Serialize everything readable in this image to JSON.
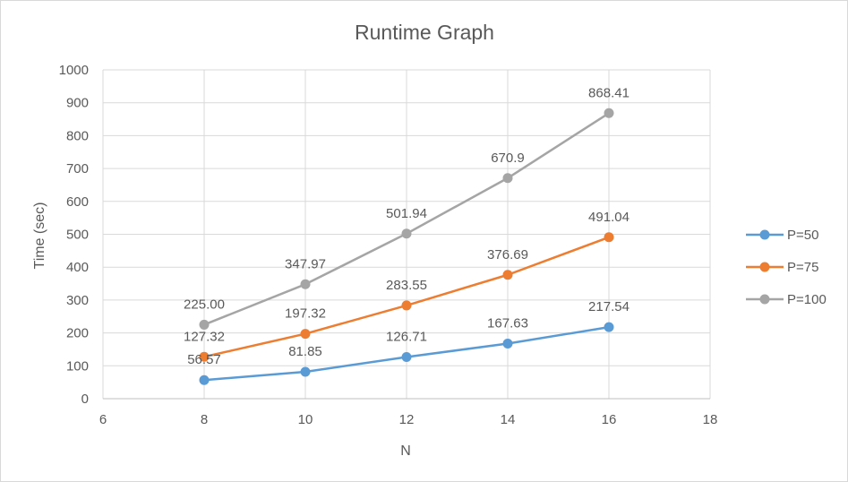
{
  "chart_data": {
    "type": "scatter",
    "title": "Runtime Graph",
    "xlabel": "N",
    "ylabel": "Time (sec)",
    "xlim": [
      6,
      18
    ],
    "ylim": [
      0,
      1000
    ],
    "x_ticks": [
      6,
      8,
      10,
      12,
      14,
      16,
      18
    ],
    "y_ticks": [
      0,
      100,
      200,
      300,
      400,
      500,
      600,
      700,
      800,
      900,
      1000
    ],
    "grid": true,
    "legend_position": "right",
    "x": [
      8,
      10,
      12,
      14,
      16
    ],
    "series": [
      {
        "name": "P=50",
        "color": "#5b9bd5",
        "values": [
          56.57,
          81.85,
          126.71,
          167.63,
          217.54
        ],
        "labels": [
          "56.57",
          "81.85",
          "126.71",
          "167.63",
          "217.54"
        ]
      },
      {
        "name": "P=75",
        "color": "#ed7d31",
        "values": [
          127.32,
          197.32,
          283.55,
          376.69,
          491.04
        ],
        "labels": [
          "127.32",
          "197.32",
          "283.55",
          "376.69",
          "491.04"
        ]
      },
      {
        "name": "P=100",
        "color": "#a5a5a5",
        "values": [
          225.0,
          347.97,
          501.94,
          670.9,
          868.41
        ],
        "labels": [
          "225.00",
          "347.97",
          "501.94",
          "670.9",
          "868.41"
        ]
      }
    ]
  }
}
